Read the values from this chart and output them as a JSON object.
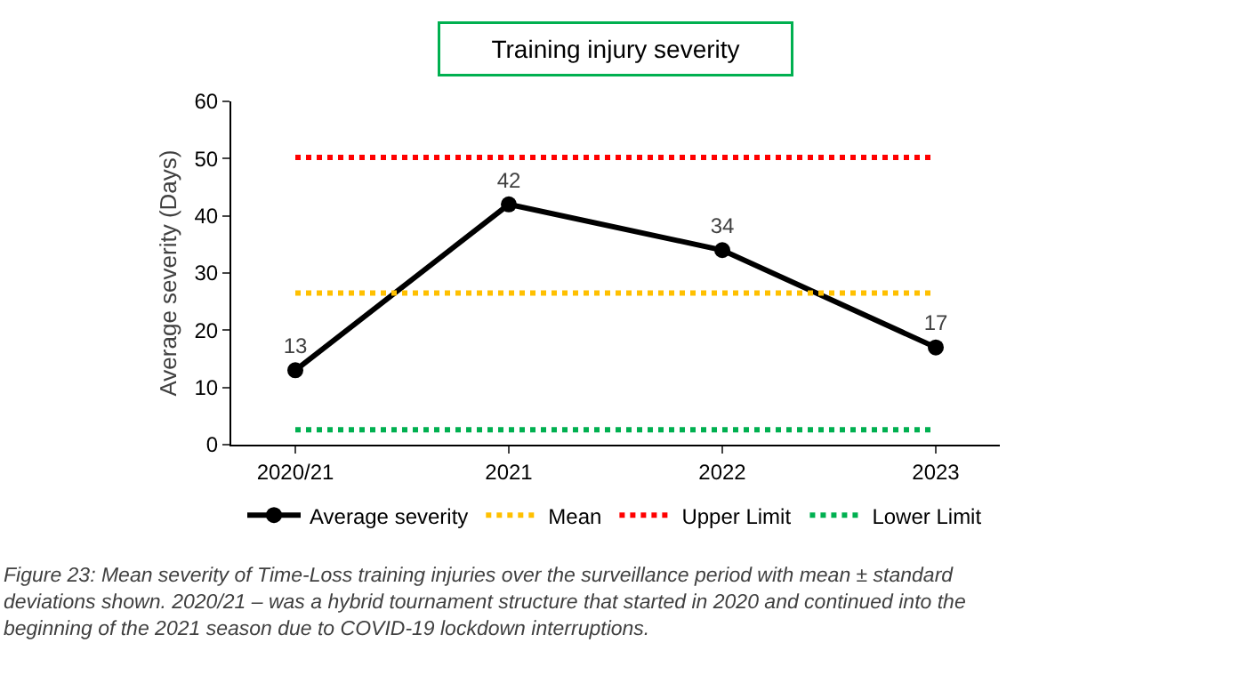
{
  "chart_data": {
    "type": "line",
    "title": "Training injury severity",
    "ylabel": "Average severity (Days)",
    "categories": [
      "2020/21",
      "2021",
      "2022",
      "2023"
    ],
    "series": [
      {
        "name": "Average severity",
        "color": "#000000",
        "values": [
          13,
          42,
          34,
          17
        ],
        "marker": "circle",
        "line_style": "solid",
        "data_labels": true
      },
      {
        "name": "Mean",
        "color": "#ffc000",
        "values": [
          26.5,
          26.5,
          26.5,
          26.5
        ],
        "marker": "none",
        "line_style": "dotted"
      },
      {
        "name": "Upper Limit",
        "color": "#ff0000",
        "values": [
          50.2,
          50.2,
          50.2,
          50.2
        ],
        "marker": "none",
        "line_style": "dotted"
      },
      {
        "name": "Lower Limit",
        "color": "#00b050",
        "values": [
          2.6,
          2.6,
          2.6,
          2.6
        ],
        "marker": "none",
        "line_style": "dotted"
      }
    ],
    "ylim": [
      0,
      60
    ],
    "yticks": [
      0,
      10,
      20,
      30,
      40,
      50,
      60
    ],
    "legend": "bottom",
    "annotations": [
      "Figure 23: Mean severity of Time-Loss training injuries over the surveillance period with mean ± standard deviations shown. 2020/21 – was a hybrid tournament structure that started in 2020 and continued into the beginning of the 2021 season due to COVID-19 lockdown interruptions."
    ]
  }
}
